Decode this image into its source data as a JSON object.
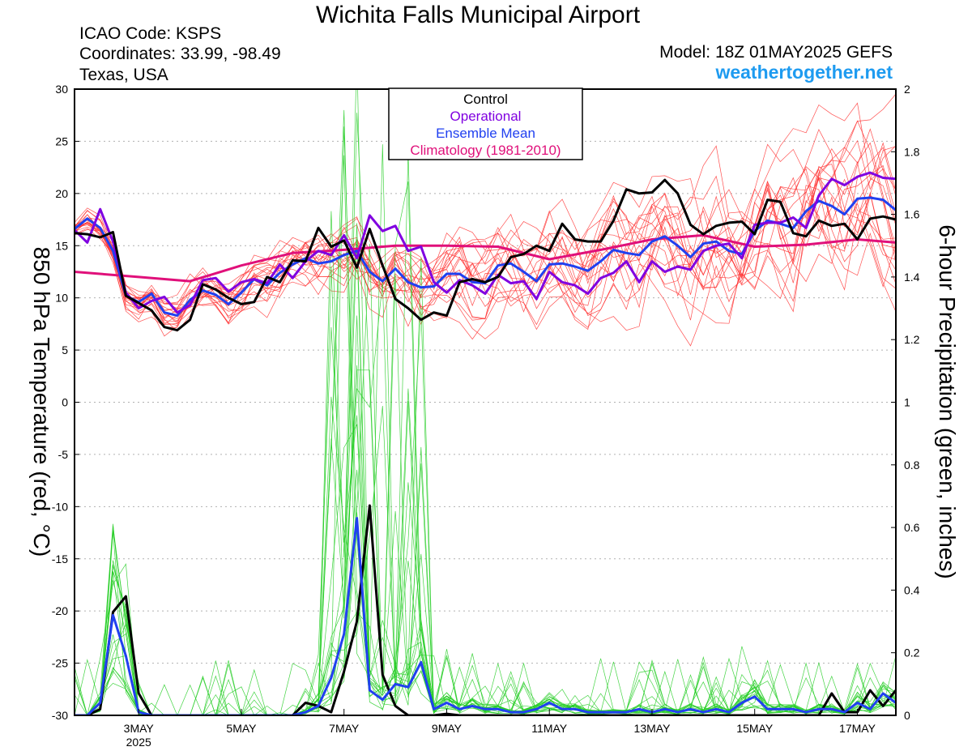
{
  "chart_data": {
    "type": "line",
    "title": "Wichita Falls Municipal Airport",
    "info_left": [
      "ICAO Code: KSPS",
      "Coordinates: 33.99, -98.49",
      "Texas, USA"
    ],
    "model": "Model: 18Z 01MAY2025 GEFS",
    "site": "weathertogether.net",
    "ylabel_left": "850 hPa Temperature (red, °C)",
    "ylabel_right": "6-hour Precipitation (green, inches)",
    "ylim_left": [
      -30,
      30
    ],
    "ylim_right": [
      0,
      2
    ],
    "yticks_left": [
      "30",
      "25",
      "20",
      "15",
      "10",
      "5",
      "0",
      "-5",
      "-10",
      "-15",
      "-20",
      "-25",
      "-30"
    ],
    "yticks_right": [
      "2",
      "1.8",
      "1.6",
      "1.4",
      "1.2",
      "1",
      "0.8",
      "0.6",
      "0.4",
      "0.2",
      "0"
    ],
    "xlim_days": [
      1.75,
      17.75
    ],
    "xticks": [
      {
        "label": "3MAY",
        "sub": "2025",
        "day": 3
      },
      {
        "label": "5MAY",
        "day": 5
      },
      {
        "label": "7MAY",
        "day": 7
      },
      {
        "label": "9MAY",
        "day": 9
      },
      {
        "label": "11MAY",
        "day": 11
      },
      {
        "label": "13MAY",
        "day": 13
      },
      {
        "label": "15MAY",
        "day": 15
      },
      {
        "label": "17MAY",
        "day": 17
      }
    ],
    "grid": true,
    "legend": {
      "position": "top-center",
      "entries": [
        {
          "label": "Control",
          "color": "#000000"
        },
        {
          "label": "Operational",
          "color": "#8000e0"
        },
        {
          "label": "Ensemble Mean",
          "color": "#2040f0"
        },
        {
          "label": "Climatology (1981-2010)",
          "color": "#e0107a"
        }
      ]
    },
    "colors": {
      "member_temp": "#ff3030",
      "member_precip": "#22cc22",
      "control": "#000000",
      "operational": "#8000e0",
      "mean": "#2040f0",
      "climatology": "#e0107a"
    },
    "time_step_days": 0.25,
    "start_day": 1.75,
    "series": [
      {
        "name": "Control",
        "axis": "left",
        "values": [
          16.2,
          16.1,
          15.8,
          16.3,
          10.2,
          9.5,
          8.8,
          7.2,
          6.9,
          7.9,
          11.3,
          10.8,
          10.0,
          9.4,
          9.6,
          12.0,
          11.5,
          13.6,
          13.5,
          16.7,
          14.9,
          15.5,
          12.9,
          16.6,
          13.1,
          9.9,
          9.0,
          7.9,
          8.6,
          8.3,
          11.5,
          11.8,
          11.5,
          12.0,
          13.9,
          14.2,
          15.0,
          14.5,
          17.1,
          15.6,
          15.4,
          15.4,
          17.4,
          20.4,
          20.0,
          20.1,
          21.3,
          20.0,
          17.0,
          16.1,
          16.9,
          17.2,
          17.3,
          16.1,
          19.4,
          19.2,
          16.2,
          15.9,
          17.4,
          16.9,
          17.1,
          15.6,
          17.6,
          17.8,
          17.5,
          15.3
        ]
      },
      {
        "name": "Operational",
        "axis": "left",
        "values": [
          16.5,
          15.3,
          18.5,
          15.4,
          10.5,
          9.0,
          9.7,
          10.1,
          8.6,
          9.3,
          11.7,
          11.9,
          10.6,
          11.5,
          11.8,
          11.4,
          13.2,
          11.9,
          13.5,
          14.5,
          14.1,
          16.0,
          13.8,
          17.9,
          16.4,
          16.9,
          14.5,
          14.9,
          11.5,
          10.5,
          11.7,
          11.2,
          10.4,
          12.2,
          11.4,
          11.6,
          9.9,
          12.5,
          11.5,
          11.2,
          10.4,
          11.9,
          12.4,
          13.5,
          11.5,
          13.5,
          12.5,
          13.0,
          12.7,
          14.5,
          15.0,
          15.2,
          13.8,
          17.0,
          17.2,
          17.2,
          17.7,
          16.7,
          19.8,
          21.4,
          20.8,
          21.6,
          22.0,
          21.5,
          21.4,
          19.8,
          20.1
        ]
      },
      {
        "name": "Ensemble Mean",
        "axis": "left",
        "values": [
          16.6,
          17.6,
          16.7,
          14.5,
          10.2,
          9.6,
          10.4,
          8.6,
          8.3,
          9.8,
          10.7,
          10.3,
          9.4,
          10.5,
          11.8,
          11.2,
          12.4,
          13.2,
          13.8,
          13.3,
          13.5,
          14.1,
          14.5,
          12.5,
          11.6,
          12.8,
          11.5,
          11.0,
          11.1,
          12.3,
          12.3,
          11.5,
          11.4,
          13.1,
          13.3,
          12.5,
          11.6,
          13.2,
          13.3,
          13.0,
          12.6,
          13.5,
          14.6,
          14.3,
          14.1,
          15.4,
          15.9,
          15.0,
          13.9,
          15.2,
          15.4,
          14.5,
          14.2,
          16.4,
          17.4,
          17.1,
          16.7,
          18.3,
          19.3,
          18.8,
          18.0,
          19.5,
          19.6,
          19.4,
          18.4
        ]
      },
      {
        "name": "Climatology (1981-2010)",
        "axis": "left",
        "x_days": [
          1.75,
          3,
          4,
          5,
          6,
          7,
          8,
          9,
          10,
          11,
          12,
          13,
          14,
          15,
          16,
          17,
          17.75
        ],
        "values": [
          12.5,
          12.0,
          11.6,
          13.1,
          14.3,
          14.6,
          15.0,
          15.0,
          14.9,
          13.7,
          14.6,
          15.6,
          16.0,
          14.9,
          15.1,
          15.6,
          15.3
        ]
      },
      {
        "name": "Control",
        "axis": "right",
        "values": [
          0,
          0,
          0.02,
          0.33,
          0.38,
          0.07,
          0,
          0,
          0,
          0,
          0,
          0,
          0,
          0,
          0,
          0,
          0,
          0,
          0.04,
          0.03,
          0.01,
          0.14,
          0.3,
          0.67,
          0.13,
          0.03,
          0,
          0,
          0,
          0.005,
          0,
          0,
          0,
          0,
          0,
          0,
          0,
          0,
          0,
          0,
          0,
          0,
          0,
          0,
          0,
          0,
          0,
          0,
          0,
          0,
          0,
          0,
          0,
          0,
          0,
          0,
          0,
          0,
          0,
          0.07,
          0.01,
          0.01,
          0.08,
          0.03,
          0.08,
          0.02
        ]
      },
      {
        "name": "Ensemble Mean",
        "axis": "right",
        "values": [
          0,
          0,
          0.04,
          0.32,
          0.19,
          0.01,
          0,
          0,
          0,
          0,
          0,
          0,
          0,
          0,
          0,
          0,
          0,
          0,
          0.01,
          0.03,
          0.12,
          0.26,
          0.63,
          0.08,
          0.05,
          0.1,
          0.09,
          0.17,
          0.02,
          0.04,
          0.02,
          0.03,
          0.02,
          0.02,
          0.01,
          0.01,
          0.02,
          0.04,
          0.02,
          0.02,
          0.01,
          0.01,
          0.01,
          0.01,
          0.02,
          0.01,
          0.02,
          0.01,
          0.02,
          0.01,
          0.02,
          0.01,
          0.04,
          0.06,
          0.02,
          0.02,
          0.02,
          0.01,
          0.02,
          0.02,
          0.01,
          0.04,
          0.02,
          0.07,
          0.04,
          0.03
        ]
      }
    ],
    "ensemble_note": "GEFS members shown as thin red temperature and thin green precipitation traces"
  }
}
